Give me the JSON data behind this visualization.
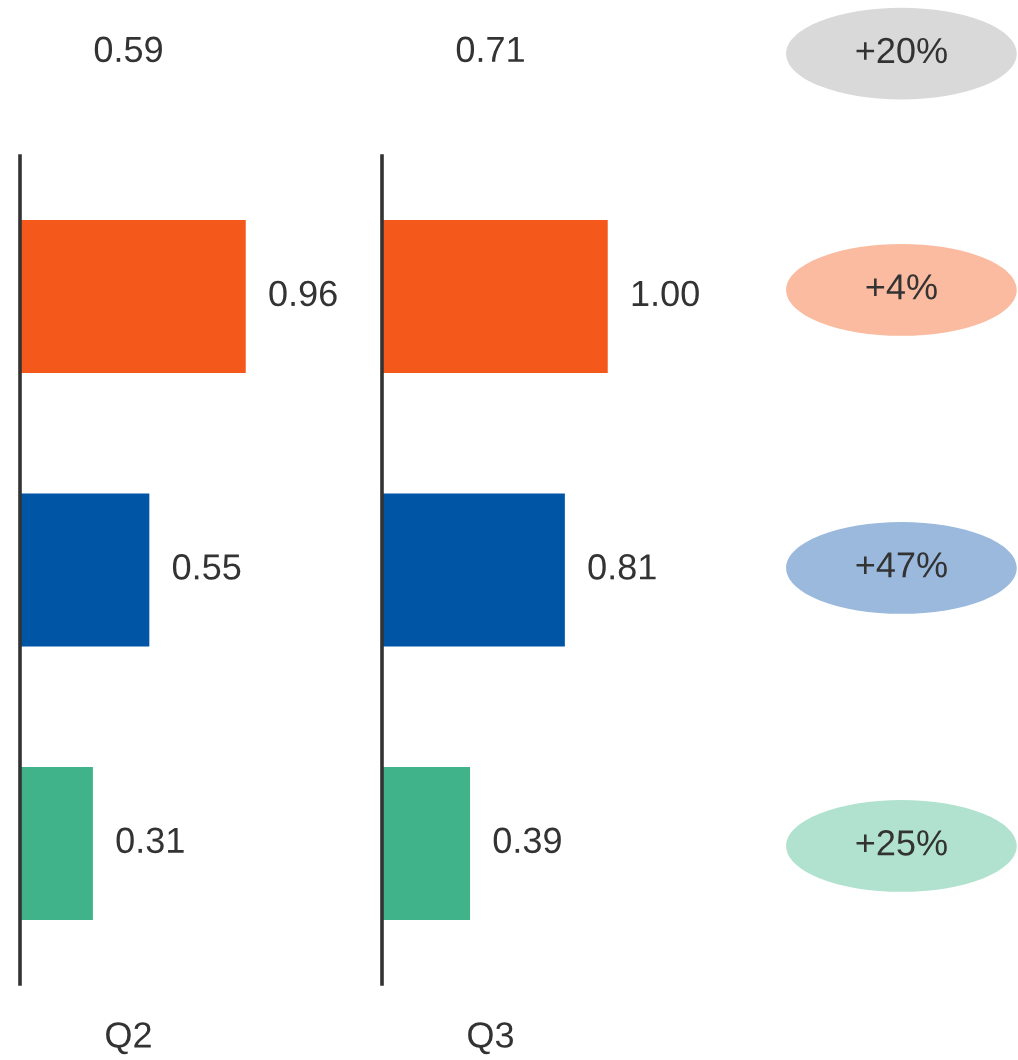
{
  "chart_data": [
    {
      "type": "bar",
      "orientation": "horizontal",
      "xlabel": "Q2",
      "categories": [
        null,
        null,
        null
      ],
      "colors": [
        "#f4581a",
        "#0055a5",
        "#40b38a"
      ],
      "values": [
        0.96,
        0.55,
        0.31
      ],
      "data_labels": true,
      "tick_labels": false,
      "annotations": [
        "0.59"
      ]
    },
    {
      "type": "bar",
      "orientation": "horizontal",
      "xlabel": "Q3",
      "categories": [
        null,
        null,
        null
      ],
      "colors": [
        "#f4581a",
        "#0055a5",
        "#40b38a"
      ],
      "values": [
        1.0,
        0.81,
        0.39
      ],
      "value_labels": [
        "1.00",
        "0.81",
        "0.39"
      ],
      "tick_labels": false,
      "annotations": [
        "0.71"
      ]
    },
    {
      "type": "other",
      "colors": [
        "#d9d9d9",
        "#fbbba0",
        "#9ab9dd",
        "#b1e2cf"
      ],
      "annotations": [
        "+20%",
        "+4%",
        "+47%",
        "+25%"
      ]
    }
  ]
}
